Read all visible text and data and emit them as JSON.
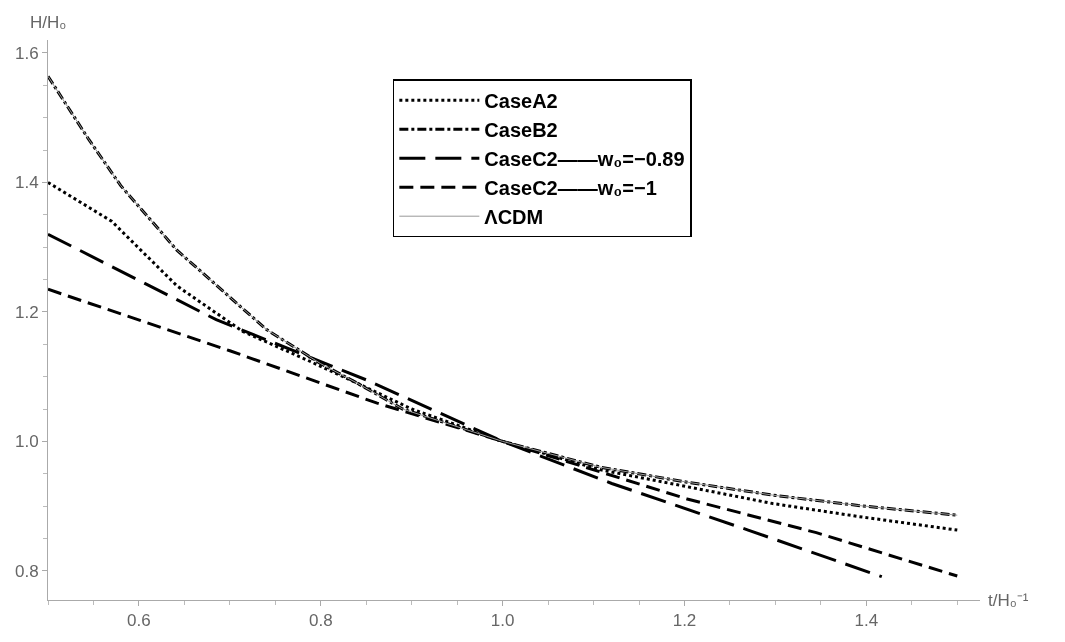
{
  "chart_data": {
    "type": "line",
    "xlabel": "t/H₀⁻¹",
    "ylabel": "H/H₀",
    "xlim": [
      0.5,
      1.525
    ],
    "ylim": [
      0.755,
      1.62
    ],
    "xticks": [
      0.6,
      0.8,
      {
        "value": 1,
        "label": "1.0"
      },
      1.2,
      1.4
    ],
    "yticks": [
      0.8,
      {
        "value": 1,
        "label": "1.0"
      },
      1.2,
      1.4,
      1.6
    ],
    "legend": "top",
    "series": [
      {
        "name": "CaseA2",
        "color": "#000000",
        "line_style": "dotted",
        "x": [
          0.5,
          0.57,
          0.642,
          0.714,
          0.786,
          0.84,
          0.9,
          1.0,
          1.108,
          1.203,
          1.297,
          1.391,
          1.5
        ],
        "values": [
          1.4,
          1.34,
          1.24,
          1.17,
          1.125,
          1.09,
          1.05,
          1.0,
          0.956,
          0.93,
          0.904,
          0.884,
          0.863
        ]
      },
      {
        "name": "CaseB2",
        "color": "#000000",
        "line_style": "dashdot",
        "x": [
          0.5,
          0.545,
          0.58,
          0.642,
          0.74,
          0.8,
          0.84,
          0.89,
          1.0,
          1.108,
          1.203,
          1.297,
          1.391,
          1.5
        ],
        "values": [
          1.564,
          1.466,
          1.395,
          1.295,
          1.173,
          1.12,
          1.09,
          1.05,
          1.0,
          0.96,
          0.937,
          0.917,
          0.901,
          0.886
        ]
      },
      {
        "name": "CaseC2——w₀=−0.89",
        "color": "#000000",
        "line_style": "longdash",
        "x": [
          0.5,
          0.685,
          0.85,
          1.0,
          1.12,
          1.27,
          1.417
        ],
        "values": [
          1.32,
          1.188,
          1.095,
          1.0,
          0.935,
          0.863,
          0.791
        ]
      },
      {
        "name": "CaseC2——w₀=−1",
        "color": "#000000",
        "line_style": "dashed",
        "x": [
          0.5,
          0.7,
          0.862,
          1.0,
          1.203,
          1.345,
          1.5
        ],
        "values": [
          1.235,
          1.14,
          1.059,
          1.0,
          0.911,
          0.859,
          0.792
        ]
      },
      {
        "name": "ΛCDM",
        "color": "#999999",
        "line_style": "solid",
        "x": [
          0.5,
          0.545,
          0.58,
          0.642,
          0.74,
          0.8,
          0.84,
          0.89,
          1.0,
          1.108,
          1.203,
          1.297,
          1.391,
          1.5
        ],
        "values": [
          1.564,
          1.466,
          1.395,
          1.295,
          1.173,
          1.12,
          1.09,
          1.05,
          1.0,
          0.96,
          0.937,
          0.917,
          0.901,
          0.886
        ]
      }
    ]
  }
}
